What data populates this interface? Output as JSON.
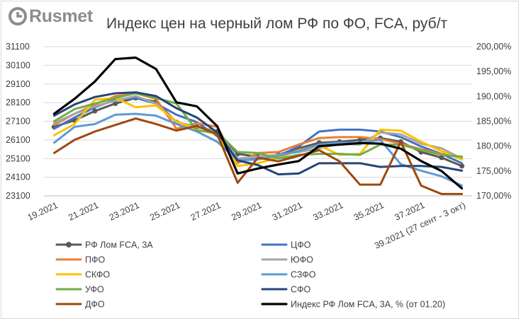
{
  "brand": {
    "name": "Rusmet"
  },
  "chart_data": {
    "type": "line",
    "title": "Индекс цен на черный лом РФ по ФО, FCA, руб/т",
    "x": [
      "19.2021",
      "20.2021",
      "21.2021",
      "22.2021",
      "23.2021",
      "24.2021",
      "25.2021",
      "26.2021",
      "27.2021",
      "28.2021",
      "29.2021",
      "30.2021",
      "31.2021",
      "32.2021",
      "33.2021",
      "34.2021",
      "35.2021",
      "36.2021",
      "37.2021",
      "38.2021",
      "39.2021 (27 сент - 3 окт)"
    ],
    "x_tick_labels": [
      "19.2021",
      "21.2021",
      "23.2021",
      "25.2021",
      "27.2021",
      "29.2021",
      "31.2021",
      "33.2021",
      "35.2021",
      "37.2021",
      "39.2021 (27 сент - 3 окт)"
    ],
    "y_left": {
      "ylim": [
        23100,
        31100
      ],
      "ticks": [
        23100,
        24100,
        25100,
        26100,
        27100,
        28100,
        29100,
        30100,
        31100
      ]
    },
    "y_right": {
      "ylim": [
        170,
        200
      ],
      "ticks": [
        "170,00%",
        "175,00%",
        "180,00%",
        "185,00%",
        "190,00%",
        "195,00%",
        "200,00%"
      ]
    },
    "grid": true,
    "legend_position": "bottom",
    "series": [
      {
        "name": "РФ Лом FCA, 3A",
        "axis": "left",
        "color": "#595959",
        "marker": true,
        "values": [
          26800,
          27150,
          27650,
          28050,
          28350,
          28150,
          27050,
          26800,
          26550,
          25350,
          25200,
          25300,
          25650,
          25950,
          26000,
          26100,
          26200,
          26000,
          25450,
          25150,
          24700
        ]
      },
      {
        "name": "ЦФО",
        "axis": "left",
        "color": "#4472c4",
        "values": [
          26700,
          27300,
          27850,
          28250,
          28350,
          28050,
          27450,
          27050,
          26300,
          25050,
          25150,
          25250,
          25750,
          26550,
          26650,
          26650,
          26550,
          26250,
          25750,
          25350,
          24850
        ]
      },
      {
        "name": "ПФО",
        "axis": "left",
        "color": "#ed7d31",
        "values": [
          26900,
          27500,
          28000,
          28450,
          28600,
          28300,
          26700,
          27000,
          26800,
          24850,
          25400,
          25450,
          25850,
          26200,
          26250,
          26250,
          26150,
          25900,
          25600,
          25350,
          25150
        ]
      },
      {
        "name": "ЮФО",
        "axis": "left",
        "color": "#a5a5a5",
        "values": [
          27000,
          27500,
          27900,
          28200,
          28450,
          28050,
          27050,
          26800,
          26500,
          25100,
          25200,
          25300,
          25450,
          25650,
          25900,
          25850,
          26500,
          26400,
          25900,
          25650,
          25100
        ]
      },
      {
        "name": "СКФО",
        "axis": "left",
        "color": "#ffc000",
        "values": [
          26350,
          26950,
          28250,
          28350,
          27850,
          27950,
          27100,
          26650,
          26400,
          24700,
          24850,
          25150,
          25550,
          25800,
          25300,
          25350,
          26650,
          26600,
          26000,
          25500,
          25050
        ]
      },
      {
        "name": "СЗФО",
        "axis": "left",
        "color": "#5b9bd5",
        "values": [
          25950,
          26800,
          26950,
          27450,
          27500,
          27400,
          26950,
          26550,
          26000,
          25000,
          25050,
          25250,
          25500,
          25850,
          25950,
          25950,
          26100,
          24800,
          24450,
          24150,
          23650
        ]
      },
      {
        "name": "УФО",
        "axis": "left",
        "color": "#70ad47",
        "values": [
          27100,
          27750,
          28050,
          28350,
          28600,
          28350,
          28050,
          26600,
          26500,
          25450,
          25400,
          25100,
          25300,
          25350,
          25350,
          25300,
          25850,
          25850,
          25550,
          25300,
          25200
        ]
      },
      {
        "name": "СФО",
        "axis": "left",
        "color": "#264478",
        "values": [
          27400,
          28000,
          28400,
          28600,
          28650,
          28450,
          27800,
          27300,
          26500,
          25000,
          24750,
          24250,
          24300,
          24850,
          24850,
          24850,
          24650,
          24700,
          24700,
          24650,
          24450
        ]
      },
      {
        "name": "ДФО",
        "axis": "left",
        "color": "#9e480e",
        "values": [
          25400,
          26100,
          26550,
          26900,
          27250,
          26950,
          26600,
          26850,
          26400,
          23800,
          25150,
          24950,
          25250,
          25550,
          24950,
          23700,
          23700,
          26000,
          23650,
          23200,
          23200
        ]
      },
      {
        "name": "Индекс РФ Лом FCA, 3A, % (от 01.20)",
        "axis": "right",
        "color": "#000000",
        "thick": true,
        "values": [
          186.5,
          189.5,
          193,
          197.5,
          197.8,
          195.5,
          188.8,
          188,
          184,
          174.5,
          175.5,
          176.3,
          177,
          180,
          180.3,
          180.6,
          180.5,
          179.5,
          177,
          175,
          171.5
        ]
      }
    ]
  }
}
